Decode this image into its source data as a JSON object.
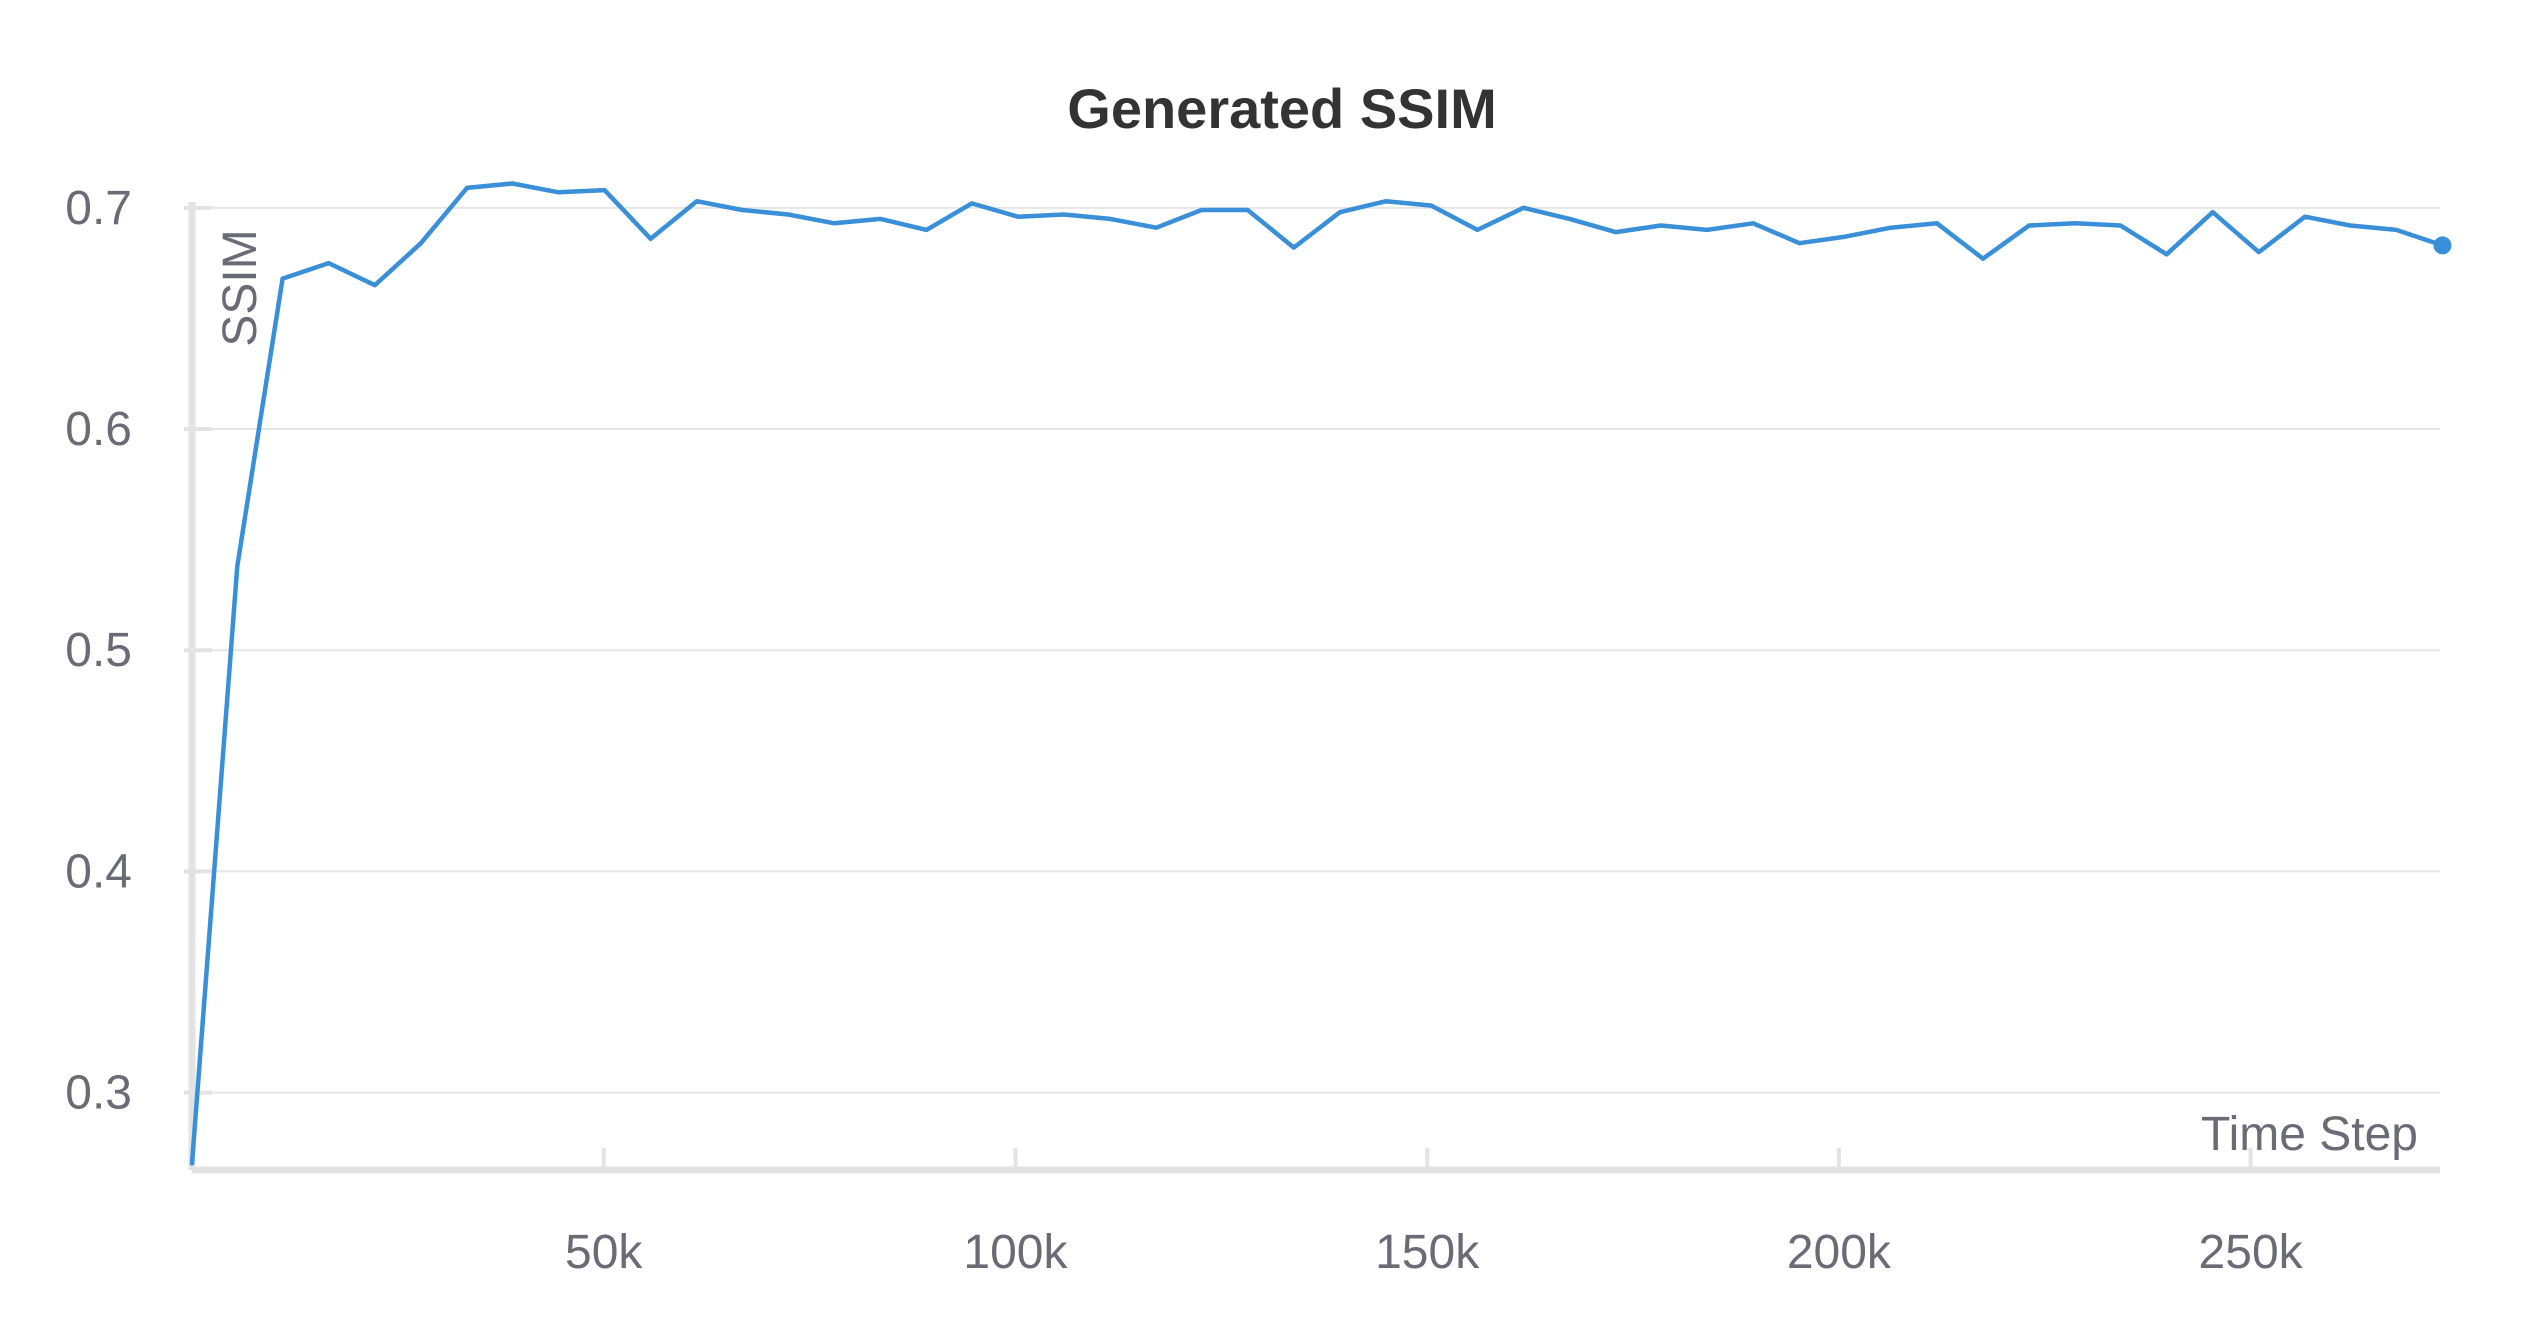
{
  "chart_data": {
    "type": "line",
    "title": "Generated SSIM",
    "xlabel": "Time Step",
    "ylabel": "SSIM",
    "xlim": [
      0,
      273000
    ],
    "ylim": [
      0.265,
      0.718
    ],
    "x_ticks": [
      50000,
      100000,
      150000,
      200000,
      250000
    ],
    "x_tick_labels": [
      "50k",
      "100k",
      "150k",
      "200k",
      "250k"
    ],
    "y_ticks": [
      0.3,
      0.4,
      0.5,
      0.6,
      0.7
    ],
    "y_tick_labels": [
      "0.3",
      "0.4",
      "0.5",
      "0.6",
      "0.7"
    ],
    "grid": true,
    "legend": "none",
    "series_color": "#3a8fd9",
    "series": [
      {
        "x": [
          0,
          5500,
          11000,
          16600,
          22200,
          27800,
          33400,
          38900,
          44500,
          50100,
          55700,
          61300,
          66800,
          72400,
          78000,
          83600,
          89200,
          94700,
          100300,
          105900,
          111500,
          117100,
          122600,
          128200,
          133800,
          139400,
          145000,
          150500,
          156100,
          161700,
          167300,
          172900,
          178400,
          184000,
          189600,
          195200,
          200800,
          206300,
          211900,
          217500,
          223100,
          228700,
          234200,
          239800,
          245400,
          251000,
          256600,
          262100,
          267700,
          273300
        ],
        "values": [
          0.268,
          0.538,
          0.668,
          0.675,
          0.665,
          0.684,
          0.709,
          0.711,
          0.707,
          0.708,
          0.686,
          0.703,
          0.699,
          0.697,
          0.693,
          0.695,
          0.69,
          0.702,
          0.696,
          0.697,
          0.695,
          0.691,
          0.699,
          0.699,
          0.682,
          0.698,
          0.703,
          0.701,
          0.69,
          0.7,
          0.695,
          0.689,
          0.692,
          0.69,
          0.693,
          0.684,
          0.687,
          0.691,
          0.693,
          0.677,
          0.692,
          0.693,
          0.692,
          0.679,
          0.698,
          0.68,
          0.696,
          0.692,
          0.69,
          0.683
        ]
      }
    ]
  }
}
